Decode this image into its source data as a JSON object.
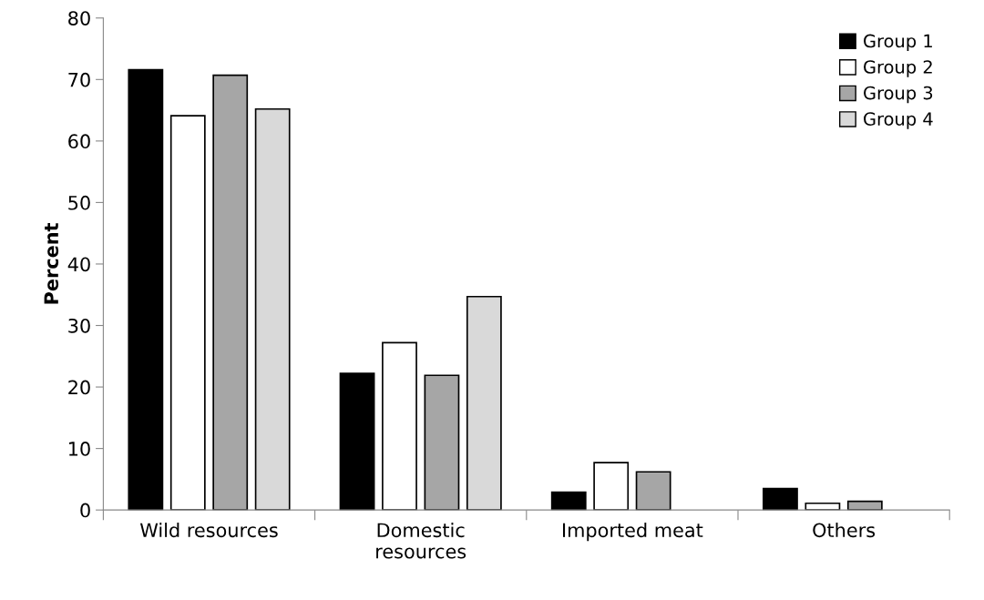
{
  "chart_data": {
    "type": "bar",
    "ylabel": "Percent",
    "categories": [
      "Wild resources",
      "Domestic\nresources",
      "Imported meat",
      "Others"
    ],
    "series": [
      {
        "name": "Group 1",
        "color": "#000000",
        "values": [
          71.6,
          22.2,
          2.9,
          3.5
        ]
      },
      {
        "name": "Group 2",
        "color": "#ffffff",
        "values": [
          64.1,
          27.2,
          7.7,
          1.1
        ]
      },
      {
        "name": "Group 3",
        "color": "#a6a6a6",
        "values": [
          70.7,
          21.9,
          6.2,
          1.4
        ]
      },
      {
        "name": "Group 4",
        "color": "#d9d9d9",
        "values": [
          65.2,
          34.7,
          null,
          null
        ]
      }
    ],
    "ylim": [
      0,
      80
    ],
    "yticks": [
      0,
      10,
      20,
      30,
      40,
      50,
      60,
      70,
      80
    ],
    "grid": false,
    "legend": "top right"
  }
}
